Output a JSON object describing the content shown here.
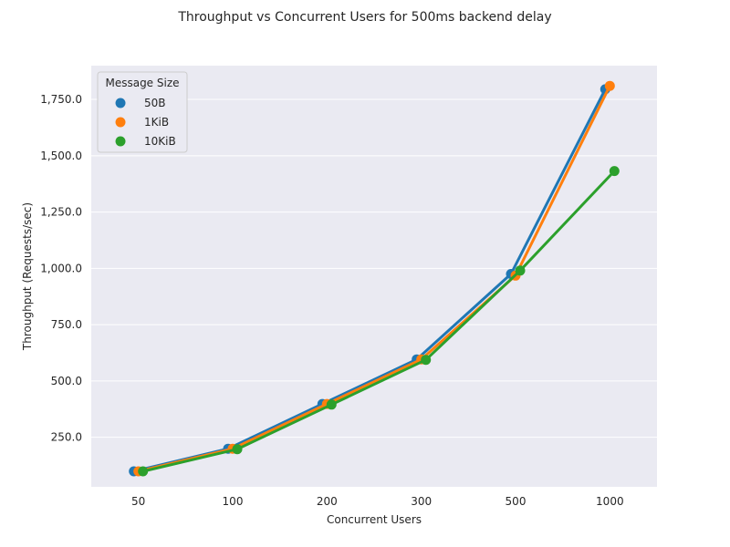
{
  "chart_data": {
    "type": "line",
    "title": "Throughput vs Concurrent Users for 500ms backend delay",
    "xlabel": "Concurrent Users",
    "ylabel": "Throughput (Requests/sec)",
    "categories": [
      "50",
      "100",
      "200",
      "300",
      "500",
      "1000"
    ],
    "yticks": [
      "250.0",
      "500.0",
      "750.0",
      "1,000.0",
      "1,250.0",
      "1,500.0",
      "1,750.0"
    ],
    "ytick_values": [
      250,
      500,
      750,
      1000,
      1250,
      1500,
      1750
    ],
    "ylim": [
      30,
      1900
    ],
    "grid": true,
    "legend": {
      "title": "Message Size",
      "position": "top-left"
    },
    "series": [
      {
        "name": "50B",
        "color": "#1f77b4",
        "values": [
          99,
          199,
          398,
          596,
          975,
          1795
        ]
      },
      {
        "name": "1KiB",
        "color": "#ff7f0e",
        "values": [
          99,
          199,
          398,
          596,
          968,
          1810
        ]
      },
      {
        "name": "10KiB",
        "color": "#2ca02c",
        "values": [
          99,
          197,
          395,
          594,
          990,
          1432
        ]
      }
    ]
  }
}
